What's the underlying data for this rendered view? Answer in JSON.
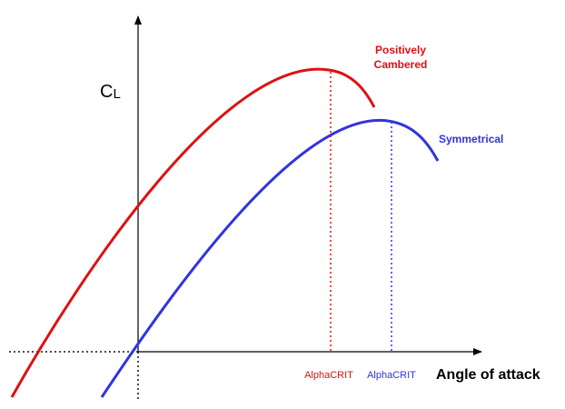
{
  "diagram": {
    "y_axis_label_main": "C",
    "y_axis_label_sub": "L",
    "x_axis_label": "Angle of attack",
    "curves": {
      "cambered": {
        "label_line1": "Positively",
        "label_line2": "Cambered",
        "crit_label": "AlphaCRIT",
        "color": "#dd1111"
      },
      "symmetrical": {
        "label": "Symmetrical",
        "crit_label": "AlphaCRIT",
        "color": "#3333dd"
      }
    },
    "axis_color": "#000000",
    "guide_color": "#111111"
  }
}
